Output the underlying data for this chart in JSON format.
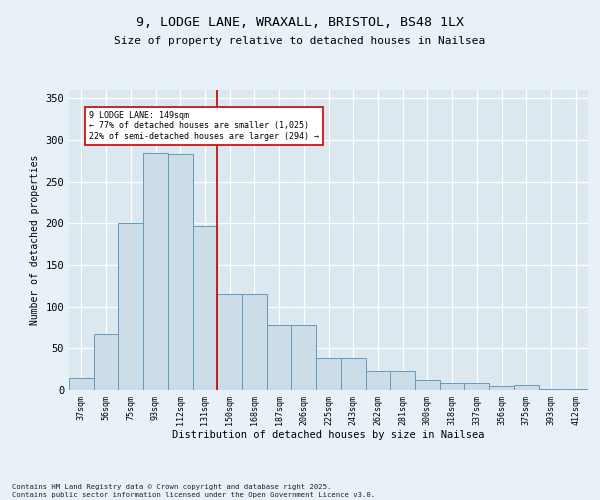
{
  "title_line1": "9, LODGE LANE, WRAXALL, BRISTOL, BS48 1LX",
  "title_line2": "Size of property relative to detached houses in Nailsea",
  "xlabel": "Distribution of detached houses by size in Nailsea",
  "ylabel": "Number of detached properties",
  "categories": [
    "37sqm",
    "56sqm",
    "75sqm",
    "93sqm",
    "112sqm",
    "131sqm",
    "150sqm",
    "168sqm",
    "187sqm",
    "206sqm",
    "225sqm",
    "243sqm",
    "262sqm",
    "281sqm",
    "300sqm",
    "318sqm",
    "337sqm",
    "356sqm",
    "375sqm",
    "393sqm",
    "412sqm"
  ],
  "bar_values": [
    15,
    67,
    200,
    285,
    283,
    197,
    115,
    115,
    78,
    78,
    38,
    38,
    23,
    23,
    12,
    9,
    9,
    5,
    6,
    1,
    1
  ],
  "bar_color": "#ccdde8",
  "bar_edge_color": "#6699bb",
  "annotation_line1": "9 LODGE LANE: 149sqm",
  "annotation_line2": "← 77% of detached houses are smaller (1,025)",
  "annotation_line3": "22% of semi-detached houses are larger (294) →",
  "annotation_box_color": "#ffffff",
  "annotation_box_edge": "#cc0000",
  "vline_color": "#cc0000",
  "vline_x": 5.5,
  "ylim": [
    0,
    360
  ],
  "yticks": [
    0,
    50,
    100,
    150,
    200,
    250,
    300,
    350
  ],
  "background_color": "#dce8f0",
  "grid_color": "#ffffff",
  "fig_bg_color": "#e8f0f8",
  "footer_line1": "Contains HM Land Registry data © Crown copyright and database right 2025.",
  "footer_line2": "Contains public sector information licensed under the Open Government Licence v3.0."
}
